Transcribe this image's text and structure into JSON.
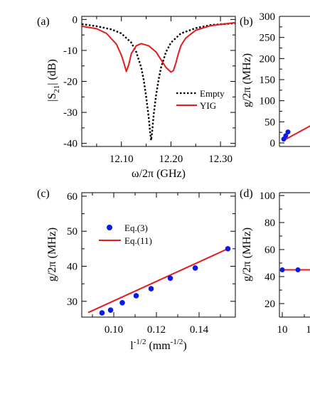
{
  "colors": {
    "empty": "#000000",
    "yig": "#e41a1c",
    "eq3": "#0a1be6",
    "eq11": "#e41a1c"
  },
  "panels": {
    "a": {
      "label": "(a)"
    },
    "b": {
      "label": "(b)"
    },
    "c": {
      "label": "(c)"
    },
    "d": {
      "label": "(d)"
    }
  },
  "chart_data": [
    {
      "id": "a",
      "type": "line",
      "xlabel": "ω/2π (GHz)",
      "ylabel": "|S21| (dB)",
      "xlim": [
        12.02,
        12.33
      ],
      "ylim": [
        -41,
        1
      ],
      "xticks": [
        12.1,
        12.2,
        12.3
      ],
      "xtick_labels": [
        "12.10",
        "12.20",
        "12.30"
      ],
      "yticks": [
        0,
        -10,
        -20,
        -30,
        -40
      ],
      "ytick_labels": [
        "0",
        "-10",
        "-20",
        "-30",
        "-40"
      ],
      "legend_position": "lower-right",
      "series": [
        {
          "name": "Empty",
          "style": "dotted",
          "x": [
            12.02,
            12.05,
            12.08,
            12.1,
            12.12,
            12.13,
            12.14,
            12.145,
            12.15,
            12.155,
            12.158,
            12.16,
            12.162,
            12.165,
            12.17,
            12.175,
            12.18,
            12.19,
            12.2,
            12.22,
            12.25,
            12.28,
            12.33
          ],
          "values": [
            -1.5,
            -2.2,
            -3.2,
            -4.5,
            -7.5,
            -10.5,
            -15.5,
            -19.5,
            -25,
            -31.5,
            -36.5,
            -39,
            -36.5,
            -31,
            -24.5,
            -19.5,
            -15.5,
            -10.5,
            -7.5,
            -4.5,
            -2.8,
            -1.8,
            -1.2
          ]
        },
        {
          "name": "YIG",
          "style": "solid",
          "x": [
            12.02,
            12.05,
            12.07,
            12.09,
            12.1,
            12.105,
            12.11,
            12.115,
            12.12,
            12.13,
            12.14,
            12.155,
            12.17,
            12.18,
            12.19,
            12.2,
            12.205,
            12.21,
            12.215,
            12.22,
            12.23,
            12.25,
            12.28,
            12.33
          ],
          "values": [
            -2.2,
            -3,
            -4.5,
            -8,
            -11.5,
            -14,
            -16.8,
            -14.5,
            -11,
            -8.5,
            -7.8,
            -8.5,
            -10.5,
            -13,
            -15.5,
            -17,
            -16.5,
            -14,
            -11,
            -8.5,
            -6,
            -3.5,
            -2,
            -1
          ]
        }
      ]
    },
    {
      "id": "b",
      "type": "line",
      "xlabel": "",
      "ylabel": "g/2π (MHz)",
      "ylim": [
        0,
        300
      ],
      "yticks": [
        0,
        50,
        100,
        150,
        200,
        250,
        300
      ],
      "ytick_labels": [
        "0",
        "50",
        "100",
        "150",
        "200",
        "250",
        "300"
      ],
      "series": [
        {
          "name": "",
          "kind": "points",
          "x": [
            0.3,
            1.1,
            2.0
          ],
          "values": [
            9,
            17,
            26
          ]
        },
        {
          "name": "",
          "kind": "fit",
          "x": [
            0,
            13
          ],
          "values": [
            5,
            47
          ]
        }
      ]
    },
    {
      "id": "c",
      "type": "scatter",
      "xlabel": "l^-1/2 (mm^-1/2)",
      "ylabel": "g/2π (MHz)",
      "xlim": [
        0.085,
        0.157
      ],
      "ylim": [
        25.5,
        61
      ],
      "xticks": [
        0.1,
        0.12,
        0.14
      ],
      "xtick_labels": [
        "0.10",
        "0.12",
        "0.14"
      ],
      "yticks": [
        30,
        40,
        50,
        60
      ],
      "ytick_labels": [
        "30",
        "40",
        "50",
        "60"
      ],
      "legend_position": "upper-left",
      "series": [
        {
          "name": "Eq.(3)",
          "kind": "points",
          "x": [
            0.0945,
            0.0985,
            0.104,
            0.1105,
            0.1175,
            0.1265,
            0.1382,
            0.1535
          ],
          "values": [
            26.7,
            27.5,
            29.6,
            31.6,
            33.6,
            36.6,
            39.5,
            45.0
          ]
        },
        {
          "name": "Eq.(11)",
          "kind": "line",
          "x": [
            0.088,
            0.1535
          ],
          "values": [
            26.8,
            45.0
          ]
        }
      ]
    },
    {
      "id": "d",
      "type": "line",
      "xlabel": "",
      "ylabel": "g/2π (MHz)",
      "ylim": [
        10,
        100
      ],
      "yticks": [
        20,
        40,
        60,
        80,
        100
      ],
      "ytick_labels": [
        "20",
        "40",
        "60",
        "80",
        "100"
      ],
      "xticks_visible": [
        "10"
      ],
      "series": [
        {
          "name": "",
          "kind": "points",
          "x": [
            0,
            1
          ],
          "values": [
            45,
            45
          ]
        },
        {
          "name": "",
          "kind": "line",
          "x": [
            0,
            10
          ],
          "values": [
            45,
            45
          ]
        }
      ]
    }
  ]
}
